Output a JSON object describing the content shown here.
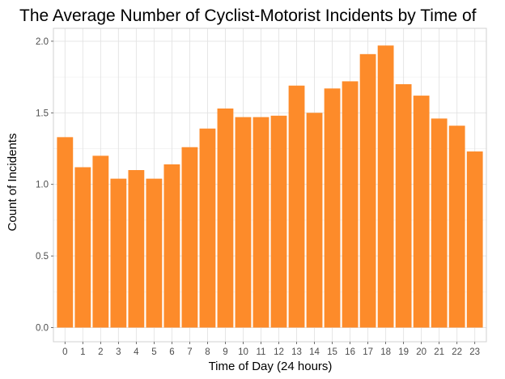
{
  "chart_data": {
    "type": "bar",
    "title": "The Average Number of Cyclist-Motorist Incidents by Time of",
    "xlabel": "Time of Day (24 hours)",
    "ylabel": "Count of Incidents",
    "categories": [
      "0",
      "1",
      "2",
      "3",
      "4",
      "5",
      "6",
      "7",
      "8",
      "9",
      "10",
      "11",
      "12",
      "13",
      "14",
      "15",
      "16",
      "17",
      "18",
      "19",
      "20",
      "21",
      "22",
      "23"
    ],
    "values": [
      1.33,
      1.12,
      1.2,
      1.04,
      1.1,
      1.04,
      1.14,
      1.26,
      1.39,
      1.53,
      1.47,
      1.47,
      1.48,
      1.69,
      1.5,
      1.67,
      1.72,
      1.91,
      1.97,
      1.7,
      1.62,
      1.46,
      1.41,
      1.23
    ],
    "ylim": [
      -0.099,
      2.09
    ],
    "yticks": [
      0.0,
      0.5,
      1.0,
      1.5,
      2.0
    ],
    "ytick_labels": [
      "0.0",
      "0.5",
      "1.0",
      "1.5",
      "2.0"
    ],
    "bar_color": "#fd8b2a",
    "grid": true,
    "legend": "none"
  }
}
